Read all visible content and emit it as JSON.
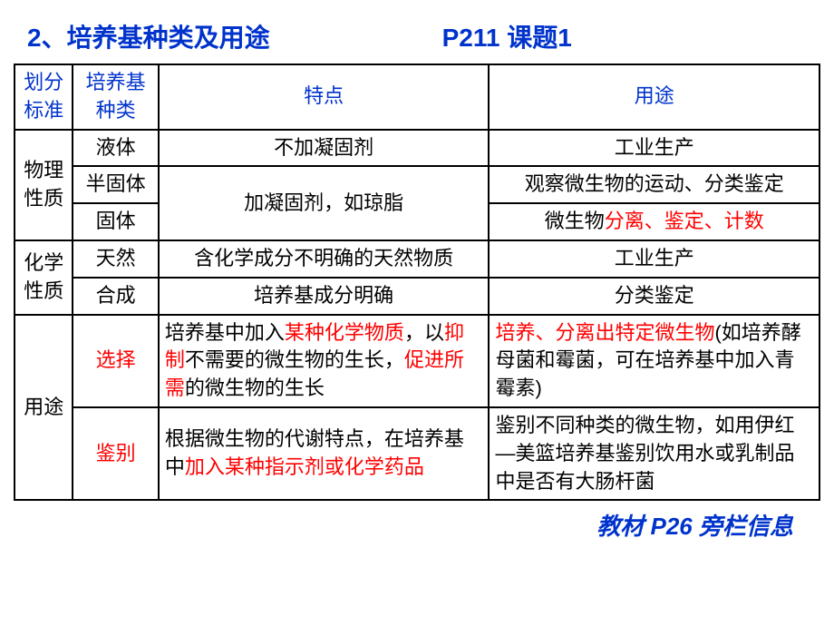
{
  "header": {
    "title": "2、培养基种类及用途",
    "subtitle": "P211 课题1"
  },
  "footer": "教材 P26 旁栏信息",
  "colors": {
    "blue": "#0033cc",
    "red": "#ff0000",
    "black": "#000000",
    "border": "#000000",
    "background": "#ffffff"
  },
  "columns": {
    "c1": "划分标准",
    "c2": "培养基种类",
    "c3": "特点",
    "c4": "用途"
  },
  "groups": {
    "physical": "物理性质",
    "chemical": "化学性质",
    "usage": "用途"
  },
  "rows": {
    "liquid": {
      "type": "液体",
      "feature": "不加凝固剂",
      "use": "工业生产"
    },
    "semisolid": {
      "type": "半固体",
      "feature_shared": "加凝固剂，如琼脂",
      "use": "观察微生物的运动、分类鉴定"
    },
    "solid": {
      "type": "固体",
      "use_prefix": "微生物",
      "use_red": "分离、鉴定、计数"
    },
    "natural": {
      "type": "天然",
      "feature": "含化学成分不明确的天然物质",
      "use": "工业生产"
    },
    "synthetic": {
      "type": "合成",
      "feature": "培养基成分明确",
      "use": "分类鉴定"
    },
    "select": {
      "type": "选择",
      "f1": "培养基中加入",
      "f2": "某种化学物质",
      "f3": "，以",
      "f4": "抑制",
      "f5": "不需要的微生物的生长，",
      "f6": "促进所需",
      "f7": "的微生物的生长",
      "u1": "培养、分离出特定微生物",
      "u2": "(如培养酵母菌和霉菌，可在培养基中加入青霉素)"
    },
    "identify": {
      "type": "鉴别",
      "f1": "根据微生物的代谢特点，在培养基中",
      "f2": "加入某种指示剂或化学药品",
      "u": "鉴别不同种类的微生物，如用伊红—美篮培养基鉴别饮用水或乳制品中是否有大肠杆菌"
    }
  }
}
